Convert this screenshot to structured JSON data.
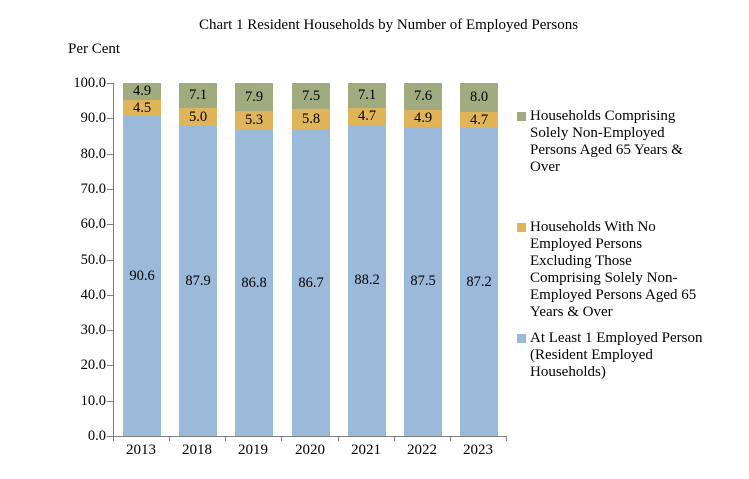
{
  "chart_data": {
    "type": "bar",
    "stacked": true,
    "title": "Chart 1 Resident Households by Number of Employed Persons",
    "ylabel": "Per Cent",
    "xlabel": "",
    "ylim": [
      0,
      100
    ],
    "yticks": [
      "100.0",
      "90.0",
      "80.0",
      "70.0",
      "60.0",
      "50.0",
      "40.0",
      "30.0",
      "20.0",
      "10.0",
      "0.0"
    ],
    "grid": false,
    "legend_position": "right",
    "categories": [
      "2013",
      "2018",
      "2019",
      "2020",
      "2021",
      "2022",
      "2023"
    ],
    "series": [
      {
        "name": "At Least 1 Employed Person (Resident Employed Households)",
        "color": "#9bb9d9",
        "values": [
          90.6,
          87.9,
          86.8,
          86.7,
          88.2,
          87.5,
          87.2
        ]
      },
      {
        "name": "Households With No Employed Persons Excluding Those Comprising Solely Non-Employed Persons Aged 65 Years & Over",
        "color": "#e0b55a",
        "values": [
          4.5,
          5.0,
          5.3,
          5.8,
          4.7,
          4.9,
          4.7
        ]
      },
      {
        "name": "Households Comprising Solely Non-Employed Persons Aged 65 Years & Over",
        "color": "#a1ab80",
        "values": [
          4.9,
          7.1,
          7.9,
          7.5,
          7.1,
          7.6,
          8.0
        ]
      }
    ]
  },
  "legend": {
    "items": [
      {
        "color": "#a1ab80",
        "lines": [
          "Households Comprising",
          "Solely Non-Employed",
          "Persons Aged 65 Years &",
          "Over"
        ]
      },
      {
        "color": "#e0b55a",
        "lines": [
          "Households With No",
          "Employed Persons",
          "Excluding Those",
          "Comprising Solely Non-",
          "Employed Persons Aged 65",
          "Years & Over"
        ]
      },
      {
        "color": "#9bb9d9",
        "lines": [
          "At Least 1 Employed Person",
          "(Resident Employed",
          "Households)"
        ]
      }
    ]
  }
}
